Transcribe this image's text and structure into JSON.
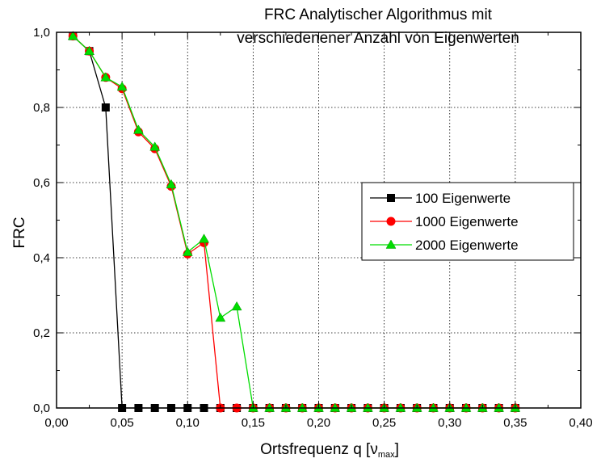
{
  "chart_data": {
    "type": "line",
    "title": [
      "FRC Analytischer Algorithmus mit",
      "verschiedenener Anzahl von Eigenwerten"
    ],
    "xlabel": "Ortsfrequenz q [ν",
    "xlabel_sub": "max",
    "xlabel_close": "]",
    "ylabel": "FRC",
    "xlim": [
      0.0,
      0.4
    ],
    "ylim": [
      0.0,
      1.0
    ],
    "x_ticks": [
      "0,00",
      "0,05",
      "0,10",
      "0,15",
      "0,20",
      "0,25",
      "0,30",
      "0,35",
      "0,40"
    ],
    "y_ticks": [
      "0,0",
      "0,2",
      "0,4",
      "0,6",
      "0,8",
      "1,0"
    ],
    "grid": true,
    "legend_position": "right",
    "x": [
      0.0125,
      0.025,
      0.0375,
      0.05,
      0.0625,
      0.075,
      0.0875,
      0.1,
      0.1125,
      0.125,
      0.1375,
      0.15,
      0.1625,
      0.175,
      0.1875,
      0.2,
      0.2125,
      0.225,
      0.2375,
      0.25,
      0.2625,
      0.275,
      0.2875,
      0.3,
      0.3125,
      0.325,
      0.3375,
      0.35
    ],
    "series": [
      {
        "name": "100 Eigenwerte",
        "color": "#000000",
        "marker": "square",
        "values": [
          0.99,
          0.95,
          0.8,
          0.0,
          0.0,
          0.0,
          0.0,
          0.0,
          0.0,
          0.0,
          0.0,
          0.0,
          0.0,
          0.0,
          0.0,
          0.0,
          0.0,
          0.0,
          0.0,
          0.0,
          0.0,
          0.0,
          0.0,
          0.0,
          0.0,
          0.0,
          0.0,
          0.0
        ]
      },
      {
        "name": "1000 Eigenwerte",
        "color": "#ff0000",
        "marker": "circle",
        "values": [
          0.99,
          0.95,
          0.88,
          0.85,
          0.735,
          0.69,
          0.59,
          0.41,
          0.44,
          0.0,
          0.0,
          0.0,
          0.0,
          0.0,
          0.0,
          0.0,
          0.0,
          0.0,
          0.0,
          0.0,
          0.0,
          0.0,
          0.0,
          0.0,
          0.0,
          0.0,
          0.0,
          0.0
        ]
      },
      {
        "name": "2000 Eigenwerte",
        "color": "#00dd00",
        "marker": "triangle",
        "values": [
          0.99,
          0.95,
          0.88,
          0.855,
          0.74,
          0.695,
          0.595,
          0.415,
          0.45,
          0.24,
          0.27,
          0.0,
          0.0,
          0.0,
          0.0,
          0.0,
          0.0,
          0.0,
          0.0,
          0.0,
          0.0,
          0.0,
          0.0,
          0.0,
          0.0,
          0.0,
          0.0,
          0.0
        ]
      }
    ]
  }
}
